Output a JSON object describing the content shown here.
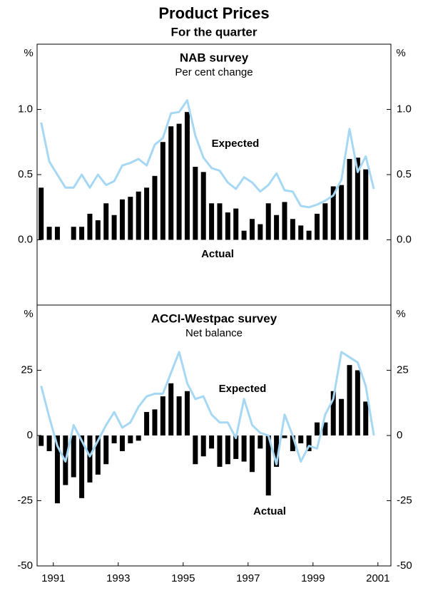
{
  "title": "Product Prices",
  "subtitle": "For the quarter",
  "chart_data": [
    {
      "type": "bar",
      "title": "NAB survey",
      "subtitle": "Per cent change",
      "ylabel": "%",
      "xlim": [
        1991,
        2001.9
      ],
      "ylim": [
        -0.5,
        1.5
      ],
      "yticks": [
        {
          "value": 0,
          "label": "0.0"
        },
        {
          "value": 0.5,
          "label": "0.5"
        },
        {
          "value": 1,
          "label": "1.0"
        }
      ],
      "x": [
        1991.125,
        1991.375,
        1991.625,
        1991.875,
        1992.125,
        1992.375,
        1992.625,
        1992.875,
        1993.125,
        1993.375,
        1993.625,
        1993.875,
        1994.125,
        1994.375,
        1994.625,
        1994.875,
        1995.125,
        1995.375,
        1995.625,
        1995.875,
        1996.125,
        1996.375,
        1996.625,
        1996.875,
        1997.125,
        1997.375,
        1997.625,
        1997.875,
        1998.125,
        1998.375,
        1998.625,
        1998.875,
        1999.125,
        1999.375,
        1999.625,
        1999.875,
        2000.125,
        2000.375,
        2000.625,
        2000.875,
        2001.125,
        2001.375
      ],
      "series": [
        {
          "name": "Actual",
          "mark": "bar",
          "color": "#000000",
          "values": [
            0.4,
            0.1,
            0.1,
            0,
            0.1,
            0.1,
            0.2,
            0.15,
            0.28,
            0.19,
            0.31,
            0.33,
            0.37,
            0.4,
            0.49,
            0.75,
            0.87,
            0.89,
            0.98,
            0.56,
            0.52,
            0.28,
            0.28,
            0.21,
            0.24,
            0.07,
            0.16,
            0.12,
            0.28,
            0.19,
            0.29,
            0.16,
            0.11,
            0.07,
            0.2,
            0.28,
            0.41,
            0.42,
            0.62,
            0.63,
            0.54,
            null
          ]
        },
        {
          "name": "Expected",
          "mark": "line",
          "color": "#a6d8f4",
          "values": [
            0.9,
            0.6,
            0.5,
            0.4,
            0.4,
            0.5,
            0.4,
            0.5,
            0.42,
            0.45,
            0.57,
            0.59,
            0.62,
            0.57,
            0.73,
            0.78,
            0.97,
            0.98,
            1.07,
            0.8,
            0.63,
            0.55,
            0.53,
            0.44,
            0.39,
            0.48,
            0.44,
            0.37,
            0.42,
            0.51,
            0.38,
            0.37,
            0.26,
            0.25,
            0.27,
            0.3,
            0.34,
            0.46,
            0.85,
            0.52,
            0.64,
            0.39
          ]
        }
      ]
    },
    {
      "type": "bar",
      "title": "ACCI-Westpac survey",
      "subtitle": "Net balance",
      "ylabel": "%",
      "xlim": [
        1991,
        2001.9
      ],
      "ylim": [
        -50,
        50
      ],
      "yticks": [
        -50,
        -25,
        0,
        25
      ],
      "xticks": [
        {
          "value": 1991.5,
          "label": "1991"
        },
        {
          "value": 1993.5,
          "label": "1993"
        },
        {
          "value": 1995.5,
          "label": "1995"
        },
        {
          "value": 1997.5,
          "label": "1997"
        },
        {
          "value": 1999.5,
          "label": "1999"
        },
        {
          "value": 2001.5,
          "label": "2001"
        }
      ],
      "x": [
        1991.125,
        1991.375,
        1991.625,
        1991.875,
        1992.125,
        1992.375,
        1992.625,
        1992.875,
        1993.125,
        1993.375,
        1993.625,
        1993.875,
        1994.125,
        1994.375,
        1994.625,
        1994.875,
        1995.125,
        1995.375,
        1995.625,
        1995.875,
        1996.125,
        1996.375,
        1996.625,
        1996.875,
        1997.125,
        1997.375,
        1997.625,
        1997.875,
        1998.125,
        1998.375,
        1998.625,
        1998.875,
        1999.125,
        1999.375,
        1999.625,
        1999.875,
        2000.125,
        2000.375,
        2000.625,
        2000.875,
        2001.125,
        2001.375
      ],
      "series": [
        {
          "name": "Actual",
          "mark": "bar",
          "color": "#000000",
          "values": [
            -4,
            -6,
            -26,
            -19,
            -16,
            -24,
            -18,
            -15,
            -11,
            -3,
            -6,
            -3,
            -2,
            9,
            10,
            15,
            20,
            15,
            17,
            -11,
            -8,
            -5,
            -12,
            -11,
            -9,
            -10,
            -14,
            -5,
            -23,
            -12,
            -1,
            -6,
            -3,
            -6,
            5,
            5,
            17,
            14,
            27,
            25,
            13,
            null
          ]
        },
        {
          "name": "Expected",
          "mark": "line",
          "color": "#a6d8f4",
          "values": [
            19,
            7,
            -4,
            -10,
            4,
            -2,
            -8,
            -2,
            4,
            9,
            3,
            5,
            11,
            15,
            16,
            16,
            24,
            32,
            20,
            14,
            15,
            8,
            5,
            5,
            -1,
            14,
            4,
            1,
            0,
            -11,
            8,
            0,
            -10,
            -4,
            -5,
            8,
            14,
            32,
            30,
            28,
            19,
            0
          ]
        }
      ]
    }
  ]
}
